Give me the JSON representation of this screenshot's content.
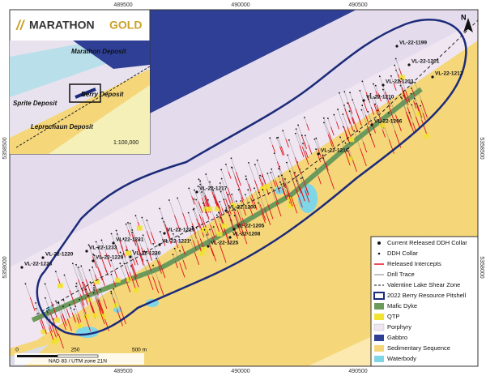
{
  "logo": {
    "word1": "MARATHON",
    "word2": "GOLD"
  },
  "inset": {
    "labels": [
      "Marathon Deposit",
      "Berry Deposit",
      "Sprite Deposit",
      "Leprechaun Deposit"
    ],
    "scale": "1:100,000"
  },
  "grid_labels": {
    "top": [
      "489500",
      "490000",
      "490500"
    ],
    "bottom": [
      "489500",
      "490000",
      "490500"
    ],
    "left": [
      "5358500",
      "5358000"
    ],
    "right": [
      "5358500",
      "5358000"
    ]
  },
  "drill_holes": [
    "VL-22-1199",
    "VL-22-1201",
    "VL-22-1213",
    "VL-22-1203",
    "VL-22-1210",
    "VL-22-1206",
    "VL-22-1216",
    "VL-22-1217",
    "VL-22-1200",
    "VL-22-1205",
    "VL-22-1208",
    "VL-22-1225",
    "VL-22-1219",
    "VL-22-1221",
    "VL-22-1231",
    "VL-22-1233",
    "VL-22-1230",
    "VL-22-1229",
    "VL-22-1220",
    "VL-22-1223"
  ],
  "legend": [
    "Current Released DDH Collar",
    "DDH Collar",
    "Released Intercepts",
    "Drill Trace",
    "Valentine Lake Shear Zone",
    "2022 Berry Resource Pitshell",
    "Mafic Dyke",
    "QTP",
    "Porphyry",
    "Gabbro",
    "Sedimentary Sequence",
    "Waterbody"
  ],
  "scale_bar": {
    "ticks": [
      "0",
      "250",
      "500 m"
    ],
    "datum": "NAD 83 / UTM zone 21N"
  },
  "north_arrow": "N"
}
